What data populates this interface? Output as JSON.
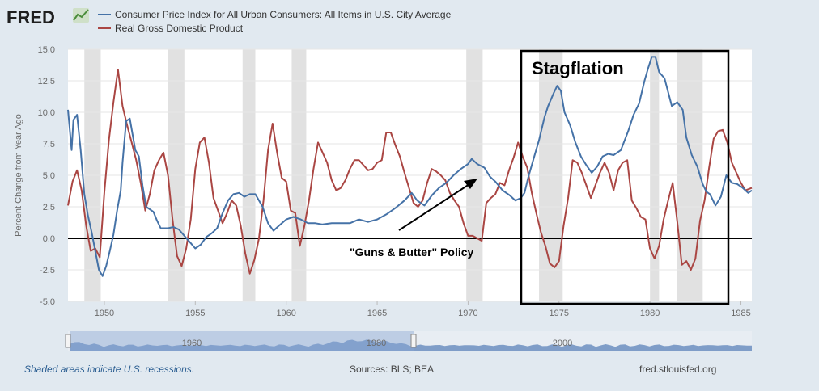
{
  "header": {
    "logo_text": "FRED"
  },
  "chart_data": {
    "type": "line",
    "ylabel": "Percent Change from Year Ago",
    "xlim": [
      1948,
      1985.6
    ],
    "ylim": [
      -5,
      15
    ],
    "yticks": [
      -5.0,
      -2.5,
      0.0,
      2.5,
      5.0,
      7.5,
      10.0,
      12.5,
      15.0
    ],
    "xticks": [
      1950,
      1955,
      1960,
      1965,
      1970,
      1975,
      1980,
      1985
    ],
    "recessions": [
      [
        1948.9,
        1949.8
      ],
      [
        1953.5,
        1954.4
      ],
      [
        1957.6,
        1958.3
      ],
      [
        1960.3,
        1961.1
      ],
      [
        1969.9,
        1970.8
      ],
      [
        1973.9,
        1975.2
      ],
      [
        1980.0,
        1980.5
      ],
      [
        1981.5,
        1982.9
      ]
    ],
    "series": [
      {
        "name": "Consumer Price Index for All Urban Consumers: All Items in U.S. City Average",
        "color": "#4572a7",
        "points": [
          [
            1948.0,
            10.2
          ],
          [
            1948.2,
            7.0
          ],
          [
            1948.3,
            9.4
          ],
          [
            1948.5,
            9.8
          ],
          [
            1948.7,
            7.0
          ],
          [
            1948.9,
            3.5
          ],
          [
            1949.1,
            1.8
          ],
          [
            1949.3,
            0.5
          ],
          [
            1949.5,
            -1.0
          ],
          [
            1949.7,
            -2.5
          ],
          [
            1949.9,
            -3.0
          ],
          [
            1950.1,
            -2.2
          ],
          [
            1950.3,
            -1.0
          ],
          [
            1950.5,
            0.3
          ],
          [
            1950.7,
            2.2
          ],
          [
            1950.9,
            3.8
          ],
          [
            1951.0,
            6.0
          ],
          [
            1951.2,
            9.3
          ],
          [
            1951.4,
            9.5
          ],
          [
            1951.7,
            7.0
          ],
          [
            1951.9,
            6.5
          ],
          [
            1952.1,
            4.2
          ],
          [
            1952.3,
            2.5
          ],
          [
            1952.5,
            2.3
          ],
          [
            1952.7,
            2.1
          ],
          [
            1952.9,
            1.4
          ],
          [
            1953.1,
            0.8
          ],
          [
            1953.5,
            0.8
          ],
          [
            1953.8,
            0.9
          ],
          [
            1954.1,
            0.7
          ],
          [
            1954.4,
            0.2
          ],
          [
            1954.7,
            -0.3
          ],
          [
            1955.0,
            -0.8
          ],
          [
            1955.3,
            -0.5
          ],
          [
            1955.6,
            0.1
          ],
          [
            1955.9,
            0.4
          ],
          [
            1956.2,
            0.8
          ],
          [
            1956.5,
            2.0
          ],
          [
            1956.8,
            3.0
          ],
          [
            1957.1,
            3.5
          ],
          [
            1957.4,
            3.6
          ],
          [
            1957.7,
            3.3
          ],
          [
            1958.0,
            3.5
          ],
          [
            1958.3,
            3.5
          ],
          [
            1958.7,
            2.5
          ],
          [
            1959.0,
            1.2
          ],
          [
            1959.3,
            0.6
          ],
          [
            1959.6,
            1.0
          ],
          [
            1960.0,
            1.5
          ],
          [
            1960.4,
            1.7
          ],
          [
            1960.8,
            1.5
          ],
          [
            1961.2,
            1.2
          ],
          [
            1961.6,
            1.2
          ],
          [
            1962.0,
            1.1
          ],
          [
            1962.5,
            1.2
          ],
          [
            1963.0,
            1.2
          ],
          [
            1963.5,
            1.2
          ],
          [
            1964.0,
            1.5
          ],
          [
            1964.5,
            1.3
          ],
          [
            1965.0,
            1.5
          ],
          [
            1965.5,
            1.9
          ],
          [
            1966.0,
            2.4
          ],
          [
            1966.5,
            3.0
          ],
          [
            1966.9,
            3.6
          ],
          [
            1967.2,
            3.0
          ],
          [
            1967.6,
            2.6
          ],
          [
            1968.0,
            3.4
          ],
          [
            1968.4,
            4.0
          ],
          [
            1968.8,
            4.4
          ],
          [
            1969.2,
            5.0
          ],
          [
            1969.6,
            5.5
          ],
          [
            1970.0,
            5.9
          ],
          [
            1970.2,
            6.3
          ],
          [
            1970.5,
            5.9
          ],
          [
            1970.9,
            5.6
          ],
          [
            1971.2,
            4.9
          ],
          [
            1971.5,
            4.5
          ],
          [
            1971.9,
            3.8
          ],
          [
            1972.3,
            3.4
          ],
          [
            1972.6,
            3.0
          ],
          [
            1972.9,
            3.2
          ],
          [
            1973.1,
            3.6
          ],
          [
            1973.3,
            4.8
          ],
          [
            1973.6,
            6.3
          ],
          [
            1973.9,
            7.8
          ],
          [
            1974.2,
            9.6
          ],
          [
            1974.4,
            10.5
          ],
          [
            1974.7,
            11.5
          ],
          [
            1974.9,
            12.1
          ],
          [
            1975.1,
            11.7
          ],
          [
            1975.3,
            10.0
          ],
          [
            1975.6,
            9.0
          ],
          [
            1975.9,
            7.6
          ],
          [
            1976.2,
            6.5
          ],
          [
            1976.5,
            5.8
          ],
          [
            1976.8,
            5.2
          ],
          [
            1977.1,
            5.7
          ],
          [
            1977.4,
            6.5
          ],
          [
            1977.7,
            6.7
          ],
          [
            1978.0,
            6.6
          ],
          [
            1978.4,
            7.0
          ],
          [
            1978.8,
            8.5
          ],
          [
            1979.1,
            9.8
          ],
          [
            1979.4,
            10.7
          ],
          [
            1979.7,
            12.5
          ],
          [
            1979.9,
            13.5
          ],
          [
            1980.1,
            14.4
          ],
          [
            1980.3,
            14.4
          ],
          [
            1980.5,
            13.2
          ],
          [
            1980.8,
            12.7
          ],
          [
            1981.0,
            11.6
          ],
          [
            1981.2,
            10.5
          ],
          [
            1981.5,
            10.8
          ],
          [
            1981.8,
            10.2
          ],
          [
            1982.0,
            8.0
          ],
          [
            1982.3,
            6.6
          ],
          [
            1982.6,
            5.7
          ],
          [
            1982.9,
            4.3
          ],
          [
            1983.1,
            3.7
          ],
          [
            1983.3,
            3.5
          ],
          [
            1983.6,
            2.6
          ],
          [
            1983.9,
            3.3
          ],
          [
            1984.2,
            5.0
          ],
          [
            1984.5,
            4.4
          ],
          [
            1984.8,
            4.3
          ],
          [
            1985.1,
            4.0
          ],
          [
            1985.4,
            3.6
          ],
          [
            1985.6,
            3.8
          ]
        ]
      },
      {
        "name": "Real Gross Domestic Product",
        "color": "#aa4643",
        "points": [
          [
            1948.0,
            2.6
          ],
          [
            1948.25,
            4.5
          ],
          [
            1948.5,
            5.4
          ],
          [
            1948.75,
            3.8
          ],
          [
            1949.0,
            1.0
          ],
          [
            1949.25,
            -1.0
          ],
          [
            1949.5,
            -0.8
          ],
          [
            1949.75,
            -1.5
          ],
          [
            1950.0,
            3.6
          ],
          [
            1950.25,
            7.8
          ],
          [
            1950.5,
            10.8
          ],
          [
            1950.75,
            13.4
          ],
          [
            1951.0,
            10.5
          ],
          [
            1951.25,
            9.0
          ],
          [
            1951.5,
            7.6
          ],
          [
            1951.75,
            6.2
          ],
          [
            1952.0,
            4.4
          ],
          [
            1952.25,
            2.2
          ],
          [
            1952.5,
            3.5
          ],
          [
            1952.75,
            5.4
          ],
          [
            1953.0,
            6.2
          ],
          [
            1953.25,
            6.8
          ],
          [
            1953.5,
            5.0
          ],
          [
            1953.75,
            1.5
          ],
          [
            1954.0,
            -1.4
          ],
          [
            1954.25,
            -2.2
          ],
          [
            1954.5,
            -0.8
          ],
          [
            1954.75,
            1.5
          ],
          [
            1955.0,
            5.5
          ],
          [
            1955.25,
            7.6
          ],
          [
            1955.5,
            8.0
          ],
          [
            1955.75,
            6.0
          ],
          [
            1956.0,
            3.2
          ],
          [
            1956.25,
            2.2
          ],
          [
            1956.5,
            1.2
          ],
          [
            1956.75,
            2.0
          ],
          [
            1957.0,
            3.0
          ],
          [
            1957.25,
            2.6
          ],
          [
            1957.5,
            1.0
          ],
          [
            1957.75,
            -1.2
          ],
          [
            1958.0,
            -2.8
          ],
          [
            1958.25,
            -1.7
          ],
          [
            1958.5,
            0.0
          ],
          [
            1958.75,
            3.0
          ],
          [
            1959.0,
            7.0
          ],
          [
            1959.25,
            9.1
          ],
          [
            1959.5,
            6.8
          ],
          [
            1959.75,
            4.8
          ],
          [
            1960.0,
            4.5
          ],
          [
            1960.25,
            2.2
          ],
          [
            1960.5,
            2.0
          ],
          [
            1960.75,
            -0.6
          ],
          [
            1961.0,
            1.0
          ],
          [
            1961.25,
            3.0
          ],
          [
            1961.5,
            5.5
          ],
          [
            1961.75,
            7.6
          ],
          [
            1962.0,
            6.8
          ],
          [
            1962.25,
            6.0
          ],
          [
            1962.5,
            4.6
          ],
          [
            1962.75,
            3.8
          ],
          [
            1963.0,
            4.0
          ],
          [
            1963.25,
            4.6
          ],
          [
            1963.5,
            5.5
          ],
          [
            1963.75,
            6.2
          ],
          [
            1964.0,
            6.2
          ],
          [
            1964.25,
            5.8
          ],
          [
            1964.5,
            5.4
          ],
          [
            1964.75,
            5.5
          ],
          [
            1965.0,
            6.0
          ],
          [
            1965.25,
            6.2
          ],
          [
            1965.5,
            8.4
          ],
          [
            1965.75,
            8.4
          ],
          [
            1966.0,
            7.4
          ],
          [
            1966.25,
            6.5
          ],
          [
            1966.5,
            5.2
          ],
          [
            1966.75,
            4.0
          ],
          [
            1967.0,
            2.8
          ],
          [
            1967.25,
            2.5
          ],
          [
            1967.5,
            3.0
          ],
          [
            1967.75,
            4.4
          ],
          [
            1968.0,
            5.5
          ],
          [
            1968.25,
            5.3
          ],
          [
            1968.5,
            5.0
          ],
          [
            1968.75,
            4.6
          ],
          [
            1969.0,
            3.6
          ],
          [
            1969.25,
            3.0
          ],
          [
            1969.5,
            2.5
          ],
          [
            1969.75,
            1.2
          ],
          [
            1970.0,
            0.2
          ],
          [
            1970.25,
            0.2
          ],
          [
            1970.5,
            0.0
          ],
          [
            1970.75,
            -0.2
          ],
          [
            1971.0,
            2.8
          ],
          [
            1971.25,
            3.2
          ],
          [
            1971.5,
            3.5
          ],
          [
            1971.75,
            4.4
          ],
          [
            1972.0,
            4.2
          ],
          [
            1972.25,
            5.4
          ],
          [
            1972.5,
            6.4
          ],
          [
            1972.75,
            7.6
          ],
          [
            1973.0,
            6.5
          ],
          [
            1973.25,
            5.6
          ],
          [
            1973.5,
            3.6
          ],
          [
            1973.75,
            2.0
          ],
          [
            1974.0,
            0.5
          ],
          [
            1974.25,
            -0.6
          ],
          [
            1974.5,
            -2.0
          ],
          [
            1974.75,
            -2.3
          ],
          [
            1975.0,
            -1.8
          ],
          [
            1975.25,
            1.0
          ],
          [
            1975.5,
            3.2
          ],
          [
            1975.75,
            6.2
          ],
          [
            1976.0,
            6.0
          ],
          [
            1976.25,
            5.2
          ],
          [
            1976.5,
            4.2
          ],
          [
            1976.75,
            3.2
          ],
          [
            1977.0,
            4.2
          ],
          [
            1977.25,
            5.2
          ],
          [
            1977.5,
            6.0
          ],
          [
            1977.75,
            5.2
          ],
          [
            1978.0,
            3.8
          ],
          [
            1978.25,
            5.4
          ],
          [
            1978.5,
            6.0
          ],
          [
            1978.75,
            6.2
          ],
          [
            1979.0,
            3.0
          ],
          [
            1979.25,
            2.4
          ],
          [
            1979.5,
            1.7
          ],
          [
            1979.75,
            1.5
          ],
          [
            1980.0,
            -0.8
          ],
          [
            1980.25,
            -1.6
          ],
          [
            1980.5,
            -0.6
          ],
          [
            1980.75,
            1.5
          ],
          [
            1981.0,
            3.0
          ],
          [
            1981.25,
            4.4
          ],
          [
            1981.5,
            1.3
          ],
          [
            1981.75,
            -2.1
          ],
          [
            1982.0,
            -1.8
          ],
          [
            1982.25,
            -2.5
          ],
          [
            1982.5,
            -1.6
          ],
          [
            1982.75,
            1.4
          ],
          [
            1983.0,
            3.0
          ],
          [
            1983.25,
            5.6
          ],
          [
            1983.5,
            7.9
          ],
          [
            1983.75,
            8.5
          ],
          [
            1984.0,
            8.6
          ],
          [
            1984.25,
            7.6
          ],
          [
            1984.5,
            6.0
          ],
          [
            1984.75,
            5.2
          ],
          [
            1985.0,
            4.4
          ],
          [
            1985.25,
            3.8
          ],
          [
            1985.6,
            4.0
          ]
        ]
      }
    ],
    "annotations": [
      {
        "text": "Stagflation"
      },
      {
        "text": "\"Guns & Butter\" Policy"
      }
    ],
    "navigator": {
      "labels": [
        "1960",
        "1980",
        "2000"
      ]
    }
  },
  "footer": {
    "note": "Shaded areas indicate U.S. recessions.",
    "sources": "Sources: BLS; BEA",
    "url": "fred.stlouisfed.org"
  }
}
